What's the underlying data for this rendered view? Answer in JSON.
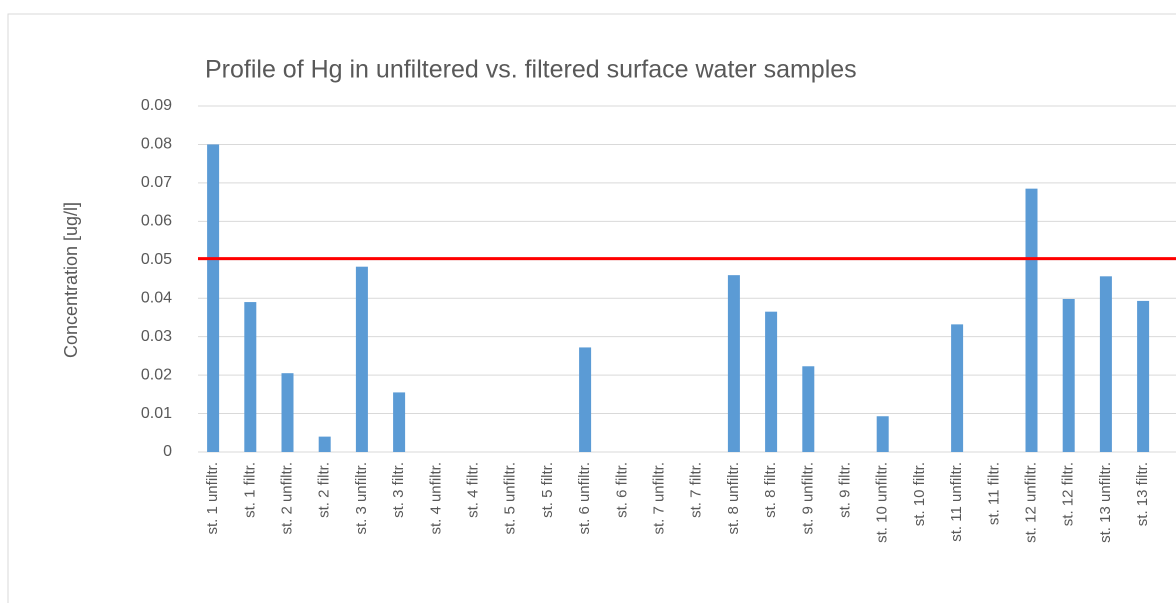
{
  "chart_data": {
    "type": "bar",
    "title": "Profile of Hg in unfiltered vs. filtered surface water samples",
    "y_label": "Concentration [ug/l]",
    "categories": [
      "st. 1 unfiltr.",
      "st. 1 filtr.",
      "st. 2 unfiltr.",
      "st. 2 filtr.",
      "st. 3 unfiltr.",
      "st. 3 filtr.",
      "st. 4 unfiltr.",
      "st. 4 filtr.",
      "st. 5 unfiltr.",
      "st. 5 filtr.",
      "st. 6 unfiltr.",
      "st. 6 filtr.",
      "st. 7 unfiltr.",
      "st. 7 filtr.",
      "st. 8 unfiltr.",
      "st. 8 filtr.",
      "st. 9 unfiltr.",
      "st. 9 filtr.",
      "st. 10 unfiltr.",
      "st. 10 filtr.",
      "st. 11 unfiltr.",
      "st. 11 filtr.",
      "st. 12 unfiltr.",
      "st. 12 filtr.",
      "st. 13 unfiltr.",
      "st. 13 filtr."
    ],
    "values": [
      0.08,
      0.039,
      0.0205,
      0.004,
      0.0482,
      0.0155,
      0,
      0,
      0,
      0,
      0.0272,
      0,
      0,
      0,
      0.046,
      0.0365,
      0.0223,
      0,
      0.0093,
      0,
      0.0332,
      0,
      0.0685,
      0.0398,
      0.0457,
      0.0393
    ],
    "color": "#5b9bd5",
    "ylim": [
      0,
      0.09
    ],
    "yticks": [
      0,
      0.01,
      0.02,
      0.03,
      0.04,
      0.05,
      0.06,
      0.07,
      0.08,
      0.09
    ],
    "grid": true,
    "reference_line": {
      "value": 0.0503,
      "color": "#ff0000"
    }
  }
}
